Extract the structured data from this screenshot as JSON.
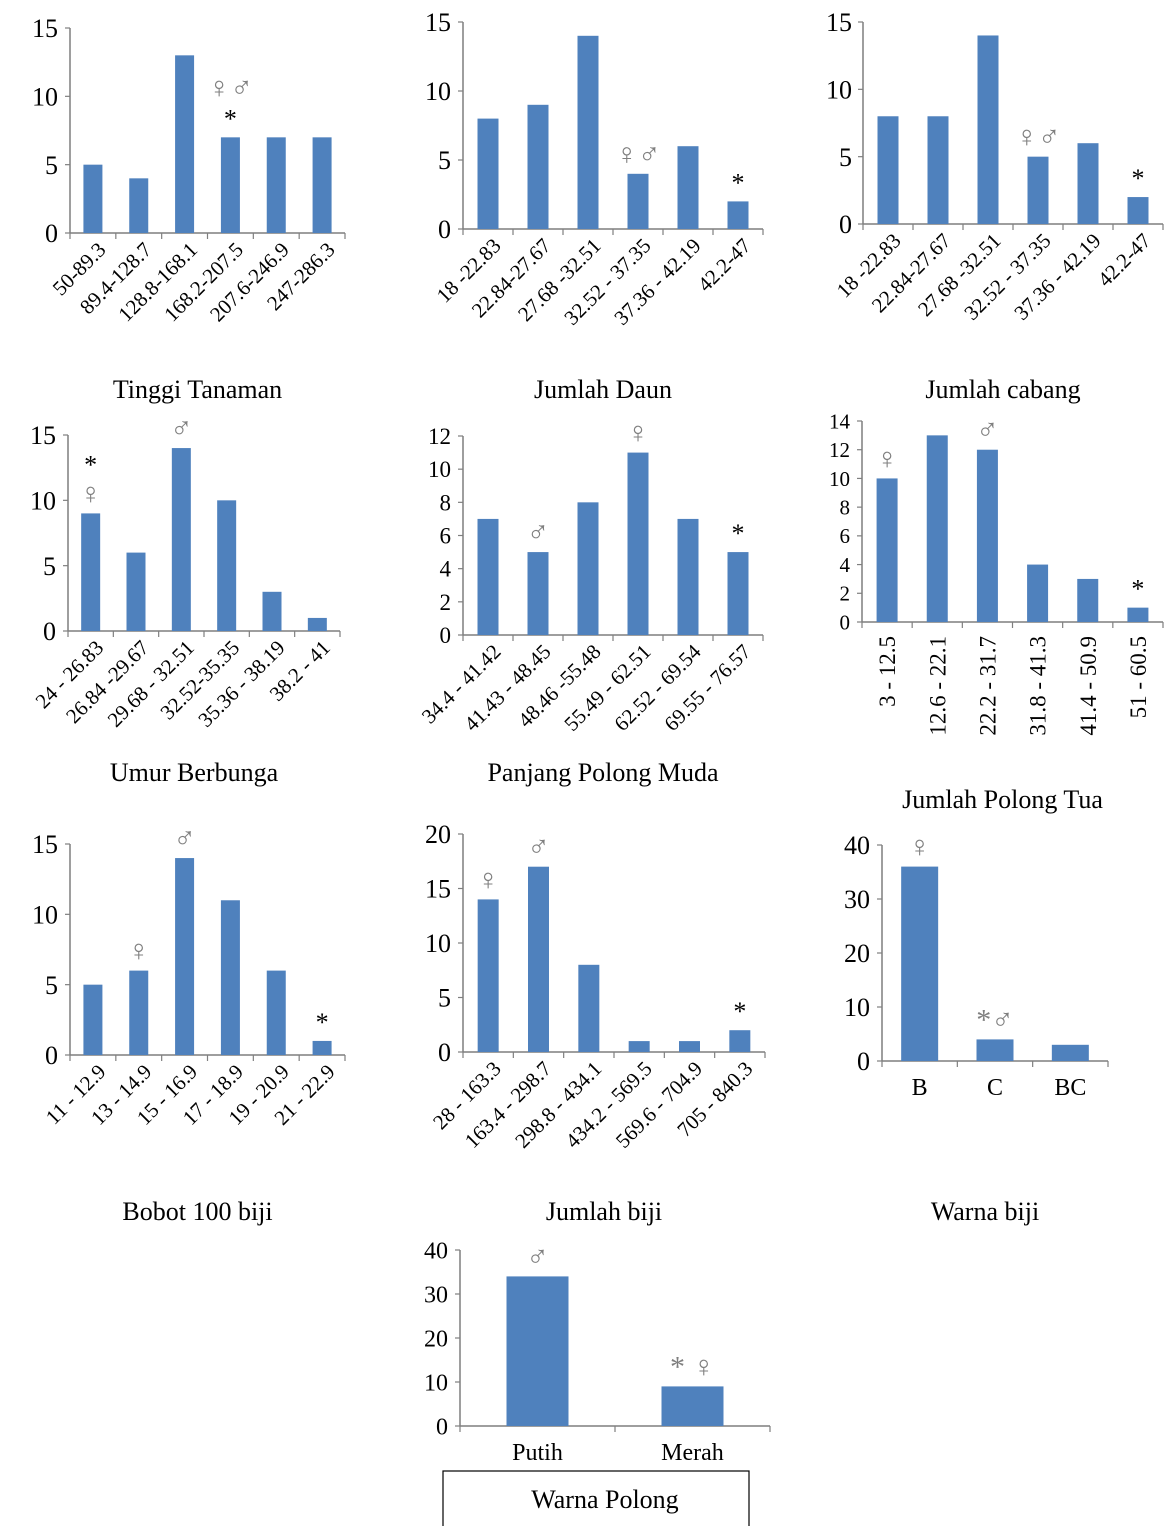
{
  "style": {
    "bar_color": "#4f81bd",
    "axis_color": "#7f7f7f",
    "marker_color": "#7f7f7f"
  },
  "chart_data": [
    {
      "type": "bar",
      "title": "Tinggi Tanaman",
      "categories": [
        "50-89.3",
        "89.4-128.7",
        "128.8-168.1",
        "168.2-207.5",
        "207.6-246.9",
        "247-286.3"
      ],
      "values": [
        5,
        4,
        13,
        7,
        7,
        7
      ],
      "ylim": [
        0,
        15
      ],
      "yticks": [
        0,
        5,
        10,
        15
      ],
      "label_rotation": -45,
      "annotations": [
        {
          "category_index": 3,
          "markers": [
            "*"
          ]
        },
        {
          "category_index": 3,
          "markers": [
            "♀♂"
          ]
        }
      ]
    },
    {
      "type": "bar",
      "title": "Jumlah Daun",
      "categories": [
        "18 -22.83",
        "22.84-27.67",
        "27.68 -32.51",
        "32.52 - 37.35",
        "37.36 - 42.19",
        "42.2-47"
      ],
      "values": [
        8,
        9,
        14,
        4,
        6,
        2
      ],
      "ylim": [
        0,
        15
      ],
      "yticks": [
        0,
        5,
        10,
        15
      ],
      "label_rotation": -45,
      "annotations": [
        {
          "category_index": 3,
          "markers": [
            "♀♂"
          ]
        },
        {
          "category_index": 5,
          "markers": [
            "*"
          ]
        }
      ]
    },
    {
      "type": "bar",
      "title": "Jumlah cabang",
      "categories": [
        "18 -22.83",
        "22.84-27.67",
        "27.68 -32.51",
        "32.52 - 37.35",
        "37.36 - 42.19",
        "42.2-47"
      ],
      "values": [
        8,
        8,
        14,
        5,
        6,
        2
      ],
      "ylim": [
        0,
        15
      ],
      "yticks": [
        0,
        5,
        10,
        15
      ],
      "label_rotation": -45,
      "annotations": [
        {
          "category_index": 3,
          "markers": [
            "♀♂"
          ]
        },
        {
          "category_index": 5,
          "markers": [
            "*"
          ]
        }
      ]
    },
    {
      "type": "bar",
      "title": "Umur Berbunga",
      "categories": [
        "24 - 26.83",
        "26.84 -29.67",
        "29.68 - 32.51",
        "32.52-35.35",
        "35.36 - 38.19",
        "38.2 - 41"
      ],
      "values": [
        9,
        6,
        14,
        10,
        3,
        1
      ],
      "ylim": [
        0,
        15
      ],
      "yticks": [
        0,
        5,
        10,
        15
      ],
      "label_rotation": -45,
      "annotations": [
        {
          "category_index": 0,
          "markers": [
            "♀",
            "*"
          ]
        },
        {
          "category_index": 2,
          "markers": [
            "♂"
          ]
        }
      ]
    },
    {
      "type": "bar",
      "title": "Panjang Polong Muda",
      "categories": [
        "34.4 - 41.42",
        "41.43 - 48.45",
        "48.46 -55.48",
        "55.49 - 62.51",
        "62.52 - 69.54",
        "69.55 - 76.57"
      ],
      "values": [
        7,
        5,
        8,
        11,
        7,
        5
      ],
      "ylim": [
        0,
        12
      ],
      "yticks": [
        0,
        2,
        4,
        6,
        8,
        10,
        12
      ],
      "label_rotation": -45,
      "annotations": [
        {
          "category_index": 1,
          "markers": [
            "♂"
          ]
        },
        {
          "category_index": 3,
          "markers": [
            "♀"
          ]
        },
        {
          "category_index": 5,
          "markers": [
            "*"
          ]
        }
      ]
    },
    {
      "type": "bar",
      "title": "Jumlah Polong Tua",
      "categories": [
        "3 - 12.5",
        "12.6 - 22.1",
        "22.2 - 31.7",
        "31.8 - 41.3",
        "41.4 - 50.9",
        "51 - 60.5"
      ],
      "values": [
        10,
        13,
        12,
        4,
        3,
        1
      ],
      "ylim": [
        0,
        14
      ],
      "yticks": [
        0,
        2,
        4,
        6,
        8,
        10,
        12,
        14
      ],
      "label_rotation": -90,
      "annotations": [
        {
          "category_index": 0,
          "markers": [
            "♀"
          ]
        },
        {
          "category_index": 2,
          "markers": [
            "♂"
          ]
        },
        {
          "category_index": 5,
          "markers": [
            "*"
          ]
        }
      ]
    },
    {
      "type": "bar",
      "title": "Bobot 100 biji",
      "categories": [
        "11 - 12.9",
        "13 - 14.9",
        "15 - 16.9",
        "17 - 18.9",
        "19 - 20.9",
        "21 - 22.9"
      ],
      "values": [
        5,
        6,
        14,
        11,
        6,
        1
      ],
      "ylim": [
        0,
        15
      ],
      "yticks": [
        0,
        5,
        10,
        15
      ],
      "label_rotation": -45,
      "annotations": [
        {
          "category_index": 1,
          "markers": [
            "♀"
          ]
        },
        {
          "category_index": 2,
          "markers": [
            "♂"
          ]
        },
        {
          "category_index": 5,
          "markers": [
            "*"
          ]
        }
      ]
    },
    {
      "type": "bar",
      "title": "Jumlah biji",
      "categories": [
        "28 - 163.3",
        "163.4 - 298.7",
        "298.8 - 434.1",
        "434.2 - 569.5",
        "569.6 - 704.9",
        "705 - 840.3"
      ],
      "values": [
        14,
        17,
        8,
        1,
        1,
        2
      ],
      "ylim": [
        0,
        20
      ],
      "yticks": [
        0,
        5,
        10,
        15,
        20
      ],
      "label_rotation": -45,
      "annotations": [
        {
          "category_index": 0,
          "markers": [
            "♀"
          ]
        },
        {
          "category_index": 1,
          "markers": [
            "♂"
          ]
        },
        {
          "category_index": 5,
          "markers": [
            "*"
          ]
        }
      ]
    },
    {
      "type": "bar",
      "title": "Warna biji",
      "categories": [
        "B",
        "C",
        "BC"
      ],
      "values": [
        36,
        4,
        3
      ],
      "ylim": [
        0,
        40
      ],
      "yticks": [
        0,
        10,
        20,
        30,
        40
      ],
      "label_rotation": 0,
      "annotations": [
        {
          "category_index": 0,
          "markers": [
            "♀"
          ]
        },
        {
          "category_index": 1,
          "markers": [
            "*♂"
          ]
        }
      ]
    },
    {
      "type": "bar",
      "title": "Warna Polong",
      "categories": [
        "Putih",
        "Merah"
      ],
      "values": [
        34,
        9
      ],
      "ylim": [
        0,
        40
      ],
      "yticks": [
        0,
        10,
        20,
        30,
        40
      ],
      "label_rotation": 0,
      "annotations": [
        {
          "category_index": 0,
          "markers": [
            "♂"
          ]
        },
        {
          "category_index": 1,
          "markers": [
            "* ♀"
          ]
        }
      ]
    }
  ]
}
